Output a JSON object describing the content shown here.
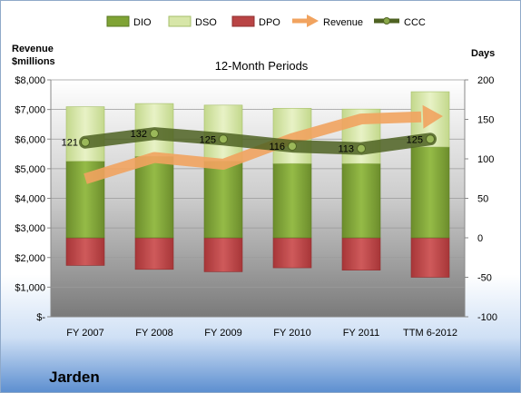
{
  "company": "Jarden",
  "chart_data": {
    "type": "bar",
    "title": "12-Month Periods",
    "ylabel_left": "Revenue\n$millions",
    "ylabel_right": "Days",
    "categories": [
      "FY 2007",
      "FY 2008",
      "FY 2009",
      "FY 2010",
      "FY 2011",
      "TTM 6-2012"
    ],
    "left_axis": {
      "ylim": [
        0,
        8000
      ],
      "ticks": [
        "$-",
        "$1,000",
        "$2,000",
        "$3,000",
        "$4,000",
        "$5,000",
        "$6,000",
        "$7,000",
        "$8,000"
      ]
    },
    "right_axis": {
      "ylim": [
        -100,
        200
      ],
      "ticks": [
        "-100",
        "-50",
        "0",
        "50",
        "100",
        "150",
        "200"
      ]
    },
    "legend": {
      "placement": "top",
      "entries": [
        "DIO",
        "DSO",
        "DPO",
        "Revenue",
        "CCC"
      ]
    },
    "series": [
      {
        "name": "DIO",
        "axis": "right",
        "values": [
          97,
          103,
          97,
          94,
          94,
          115
        ]
      },
      {
        "name": "DSO",
        "axis": "right",
        "values": [
          69,
          67,
          71,
          70,
          69,
          70
        ]
      },
      {
        "name": "DPO",
        "axis": "right",
        "values": [
          -35,
          -40,
          -43,
          -38,
          -41,
          -50
        ]
      },
      {
        "name": "Revenue",
        "axis": "left",
        "values": [
          4660,
          5380,
          5150,
          6020,
          6680,
          6760
        ]
      },
      {
        "name": "CCC",
        "axis": "right",
        "values": [
          121,
          132,
          125,
          116,
          113,
          125
        ],
        "data_labels": [
          "121",
          "132",
          "125",
          "116",
          "113",
          "125"
        ]
      }
    ],
    "colors": {
      "DIO": "#7fa335",
      "DSO": "#d7e6a8",
      "DPO": "#b94445",
      "Revenue": "#f1a35f",
      "CCC": "#4e6222"
    },
    "grid": true
  }
}
